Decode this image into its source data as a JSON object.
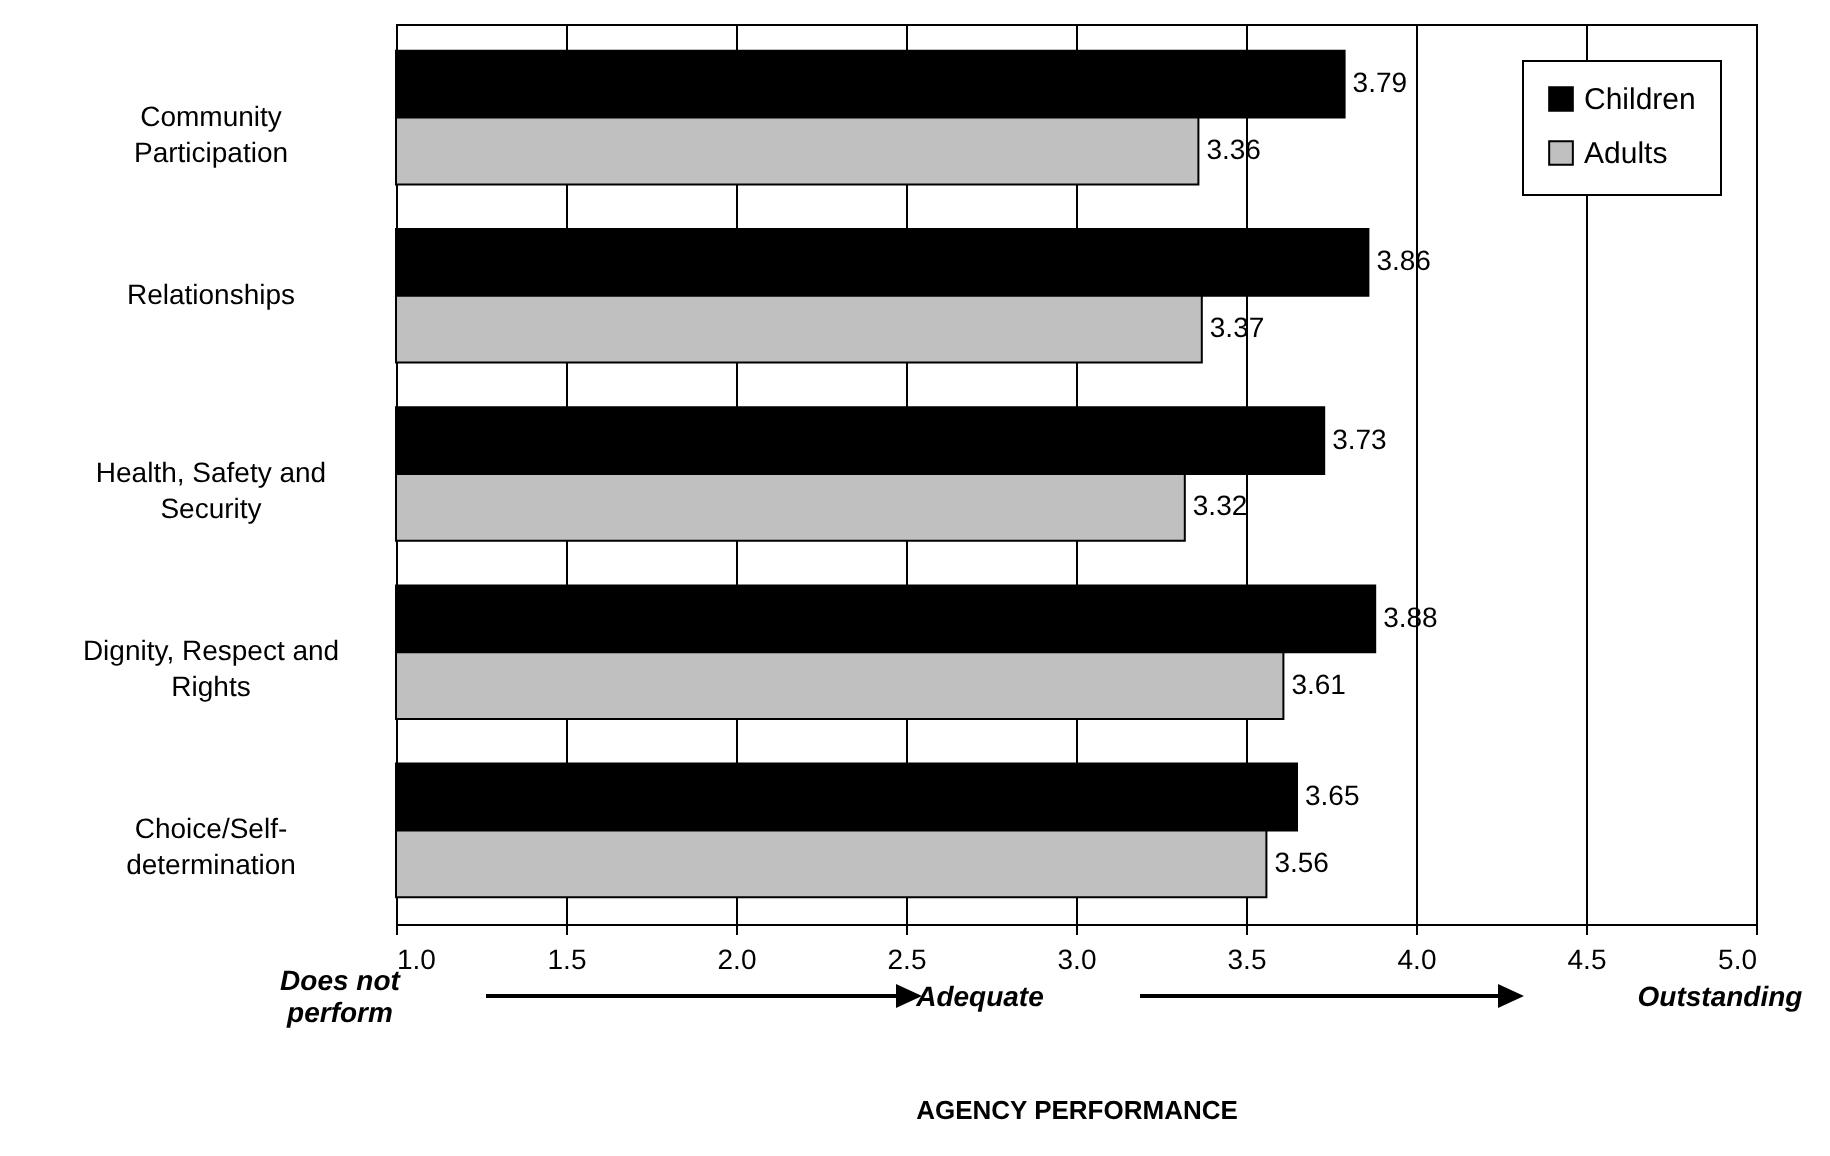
{
  "chart_data": {
    "type": "bar",
    "orientation": "horizontal",
    "xlabel": "AGENCY PERFORMANCE",
    "categories": [
      "Community Participation",
      "Relationships",
      "Health, Safety and Security",
      "Dignity, Respect and Rights",
      "Choice/Self-determination"
    ],
    "series": [
      {
        "name": "Children",
        "color": "#000000",
        "values": [
          3.79,
          3.86,
          3.73,
          3.88,
          3.65
        ]
      },
      {
        "name": "Adults",
        "color": "#c0c0c0",
        "values": [
          3.36,
          3.37,
          3.32,
          3.61,
          3.56
        ]
      }
    ],
    "xlim": [
      1,
      5
    ],
    "xticks": [
      {
        "value": 1,
        "label": "1.0"
      },
      {
        "value": 1.5,
        "label": "1.5"
      },
      {
        "value": 2,
        "label": "2.0"
      },
      {
        "value": 2.5,
        "label": "2.5"
      },
      {
        "value": 3,
        "label": "3.0"
      },
      {
        "value": 3.5,
        "label": "3.5"
      },
      {
        "value": 4,
        "label": "4.0"
      },
      {
        "value": 4.5,
        "label": "4.5"
      },
      {
        "value": 5,
        "label": "5.0"
      }
    ],
    "grid": "x",
    "legend": "top right",
    "data_labels": true,
    "annotations": [
      "Does not perform",
      "Adequate",
      "Outstanding"
    ]
  }
}
